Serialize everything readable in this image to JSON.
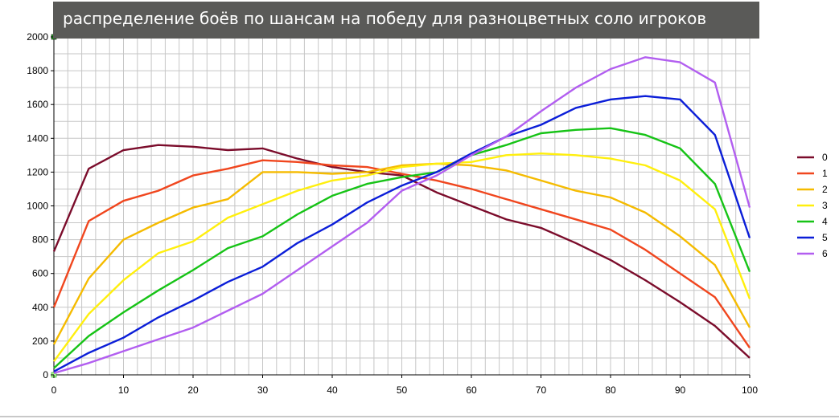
{
  "chart_data": {
    "type": "line",
    "title": "распределение боёв по шансам на победу для разноцветных соло игроков",
    "xlabel": "",
    "ylabel": "",
    "xlim": [
      0,
      100
    ],
    "ylim": [
      0,
      2000
    ],
    "x_ticks": [
      "0",
      "10",
      "20",
      "30",
      "40",
      "50",
      "60",
      "70",
      "80",
      "90",
      "100"
    ],
    "y_ticks": [
      "0",
      "200",
      "400",
      "600",
      "800",
      "1000",
      "1200",
      "1400",
      "1600",
      "1800",
      "2000"
    ],
    "grid": true,
    "legend_position": "right",
    "x": [
      0,
      5,
      10,
      15,
      20,
      25,
      30,
      35,
      40,
      45,
      50,
      55,
      60,
      65,
      70,
      75,
      80,
      85,
      90,
      95,
      100
    ],
    "series": [
      {
        "name": "0",
        "color": "#7b0c2b",
        "values": [
          730,
          1220,
          1330,
          1360,
          1350,
          1330,
          1340,
          1280,
          1230,
          1200,
          1180,
          1080,
          1000,
          920,
          870,
          780,
          680,
          560,
          430,
          290,
          100
        ]
      },
      {
        "name": "1",
        "color": "#f0461e",
        "values": [
          400,
          910,
          1030,
          1090,
          1180,
          1220,
          1270,
          1260,
          1240,
          1230,
          1190,
          1150,
          1100,
          1040,
          980,
          920,
          860,
          740,
          600,
          460,
          160
        ]
      },
      {
        "name": "2",
        "color": "#f5bb00",
        "values": [
          180,
          570,
          800,
          900,
          990,
          1040,
          1200,
          1200,
          1190,
          1200,
          1240,
          1250,
          1240,
          1210,
          1150,
          1090,
          1050,
          960,
          820,
          650,
          280
        ]
      },
      {
        "name": "3",
        "color": "#ffef0d",
        "values": [
          80,
          360,
          560,
          720,
          790,
          930,
          1010,
          1090,
          1150,
          1180,
          1230,
          1250,
          1260,
          1300,
          1310,
          1300,
          1280,
          1240,
          1150,
          980,
          450
        ]
      },
      {
        "name": "4",
        "color": "#16c316",
        "values": [
          40,
          230,
          370,
          500,
          620,
          750,
          820,
          950,
          1060,
          1130,
          1170,
          1200,
          1300,
          1360,
          1430,
          1450,
          1460,
          1420,
          1340,
          1130,
          610
        ]
      },
      {
        "name": "5",
        "color": "#0b1ed8",
        "values": [
          20,
          130,
          220,
          340,
          440,
          550,
          640,
          780,
          890,
          1020,
          1120,
          1200,
          1310,
          1410,
          1480,
          1580,
          1630,
          1650,
          1630,
          1420,
          810
        ]
      },
      {
        "name": "6",
        "color": "#b25ef0",
        "values": [
          10,
          70,
          140,
          210,
          280,
          380,
          480,
          620,
          760,
          900,
          1090,
          1180,
          1300,
          1410,
          1560,
          1700,
          1810,
          1880,
          1850,
          1730,
          990
        ]
      }
    ]
  }
}
